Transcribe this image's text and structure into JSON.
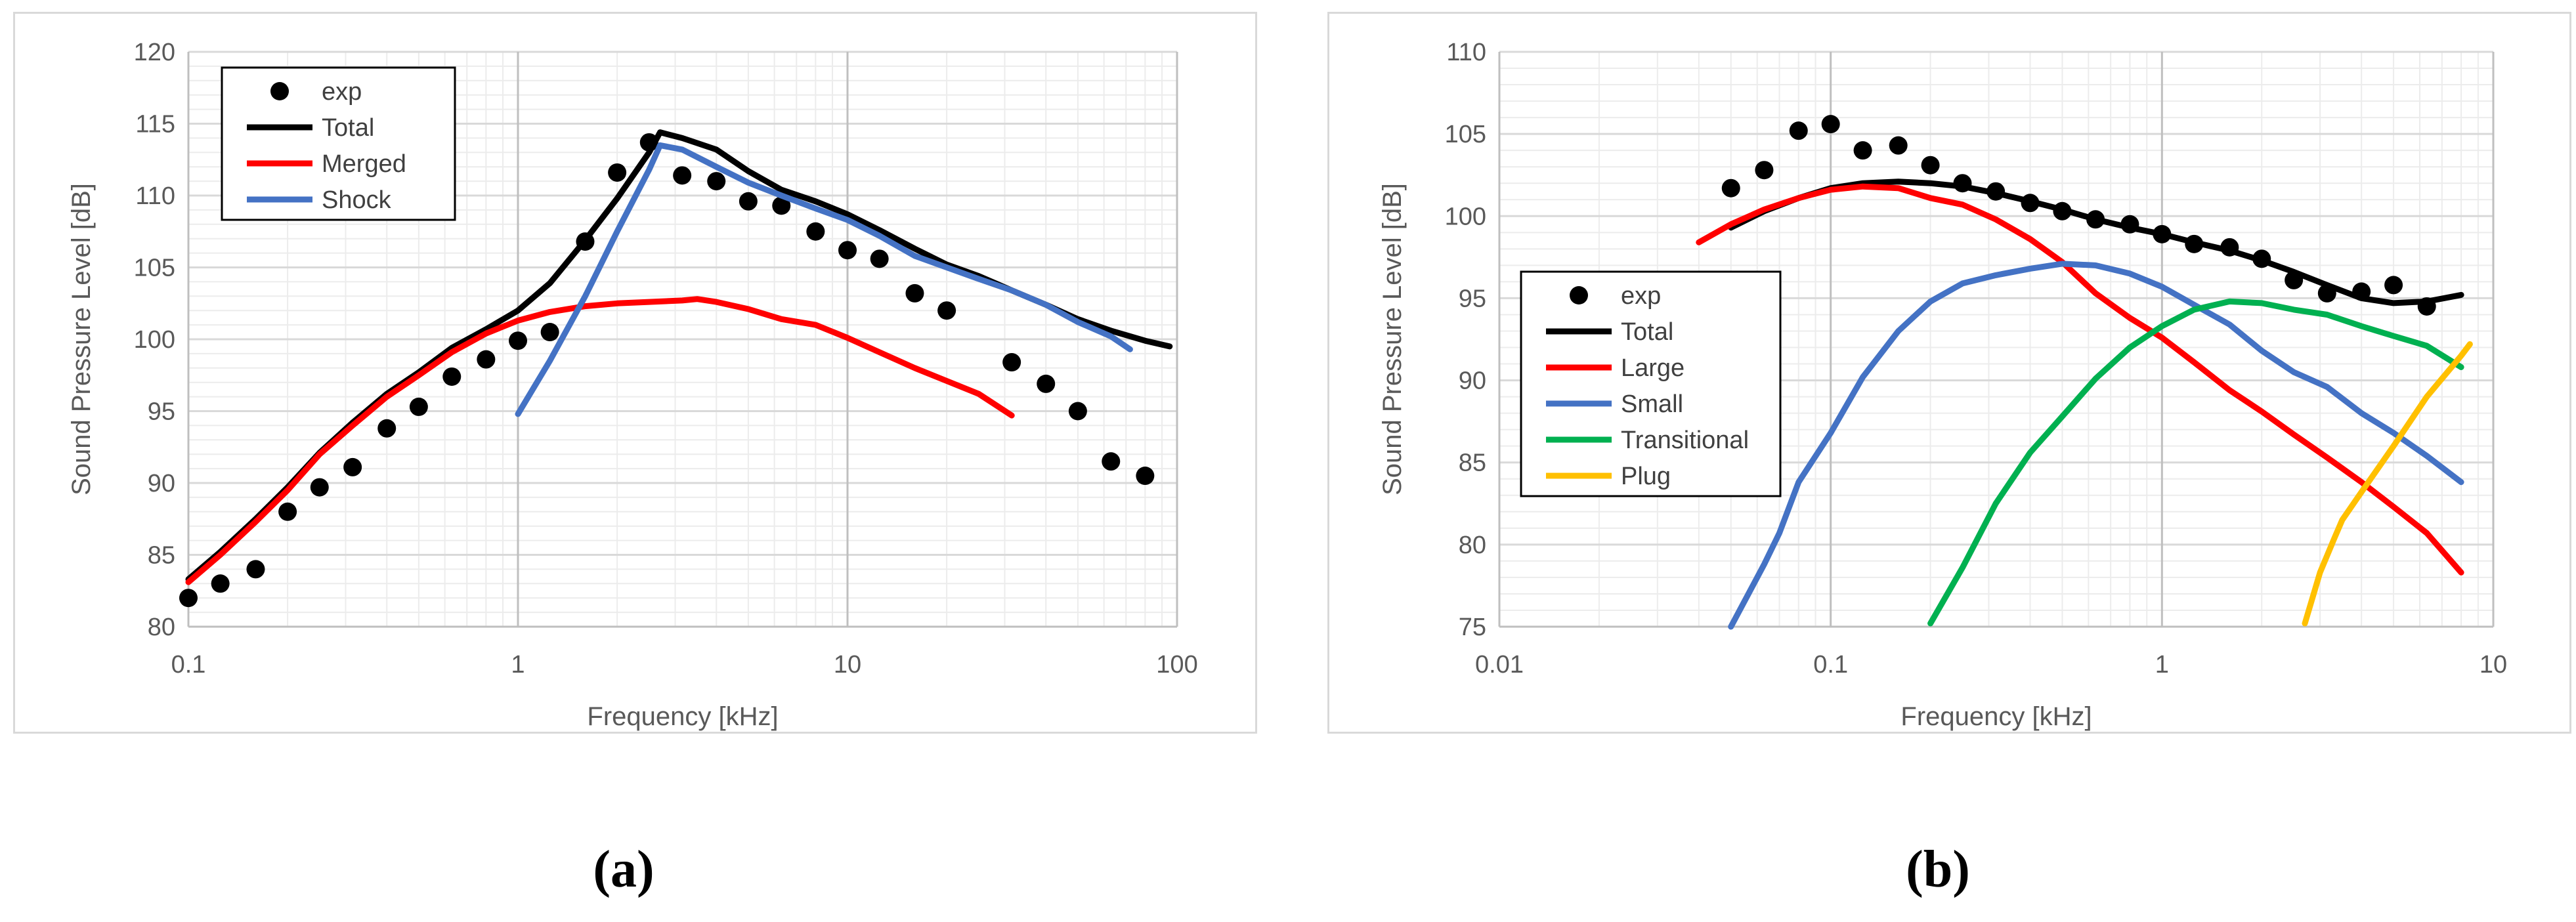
{
  "captions": {
    "a": "(a)",
    "b": "(b)"
  },
  "chart_data": [
    {
      "type": "line",
      "xlabel": "Frequency [kHz]",
      "ylabel": "Sound Pressure Level [dB]",
      "xscale": "log",
      "xlim": [
        0.1,
        100
      ],
      "ylim": [
        80,
        120
      ],
      "xticks": [
        0.1,
        1,
        10,
        100
      ],
      "xtick_labels": [
        "0.1",
        "1",
        "10",
        "100"
      ],
      "yticks": [
        80,
        85,
        90,
        95,
        100,
        105,
        110,
        115,
        120
      ],
      "grid": true,
      "legend": "top-left",
      "series": [
        {
          "name": "exp",
          "kind": "scatter",
          "color": "#000000",
          "x": [
            0.1,
            0.125,
            0.16,
            0.2,
            0.25,
            0.315,
            0.4,
            0.5,
            0.63,
            0.8,
            1.0,
            1.25,
            1.6,
            2.0,
            2.5,
            3.15,
            4.0,
            5.0,
            6.3,
            8.0,
            10,
            12.5,
            16,
            20,
            31.5,
            40,
            50,
            63,
            80
          ],
          "y": [
            82.0,
            83.0,
            84.0,
            88.0,
            89.7,
            91.1,
            93.8,
            95.3,
            97.4,
            98.6,
            99.9,
            100.5,
            106.8,
            111.6,
            113.7,
            111.4,
            111.0,
            109.6,
            109.3,
            107.5,
            106.2,
            105.6,
            103.2,
            102.0,
            98.4,
            96.9,
            95.0,
            91.5,
            90.5
          ]
        },
        {
          "name": "Total",
          "kind": "line",
          "color": "#000000",
          "x": [
            0.1,
            0.125,
            0.16,
            0.2,
            0.25,
            0.315,
            0.4,
            0.5,
            0.63,
            0.8,
            1.0,
            1.25,
            1.6,
            2.0,
            2.5,
            2.7,
            3.15,
            4.0,
            5.0,
            6.3,
            8.0,
            10,
            12.5,
            16,
            20,
            25,
            31.5,
            40,
            50,
            63,
            80,
            95
          ],
          "y": [
            83.3,
            85.2,
            87.5,
            89.7,
            92.1,
            94.2,
            96.2,
            97.7,
            99.4,
            100.7,
            102.0,
            103.9,
            106.9,
            109.8,
            113.0,
            114.4,
            114.0,
            113.2,
            111.7,
            110.4,
            109.6,
            108.7,
            107.6,
            106.3,
            105.2,
            104.4,
            103.4,
            102.4,
            101.4,
            100.6,
            99.9,
            99.5
          ]
        },
        {
          "name": "Merged",
          "kind": "line",
          "color": "#ff0000",
          "x": [
            0.1,
            0.125,
            0.16,
            0.2,
            0.25,
            0.315,
            0.4,
            0.5,
            0.63,
            0.8,
            1.0,
            1.25,
            1.6,
            2.0,
            2.5,
            3.15,
            3.5,
            4.0,
            5.0,
            6.3,
            8.0,
            10,
            12.5,
            16,
            20,
            25,
            31.5
          ],
          "y": [
            83.1,
            85.0,
            87.3,
            89.5,
            92.0,
            94.0,
            96.0,
            97.5,
            99.1,
            100.4,
            101.3,
            101.9,
            102.3,
            102.5,
            102.6,
            102.7,
            102.8,
            102.6,
            102.1,
            101.4,
            101.0,
            100.1,
            99.1,
            98.0,
            97.1,
            96.2,
            94.7
          ]
        },
        {
          "name": "Shock",
          "kind": "line",
          "color": "#4472c4",
          "x": [
            1.0,
            1.25,
            1.6,
            2.0,
            2.5,
            2.7,
            3.15,
            4.0,
            5.0,
            6.3,
            8.0,
            10,
            12.5,
            16,
            20,
            25,
            31.5,
            40,
            50,
            63,
            72
          ],
          "y": [
            94.8,
            98.5,
            103.0,
            107.5,
            111.8,
            113.5,
            113.2,
            112.0,
            110.9,
            110.0,
            109.1,
            108.3,
            107.2,
            105.8,
            105.0,
            104.2,
            103.4,
            102.4,
            101.2,
            100.2,
            99.3
          ]
        }
      ]
    },
    {
      "type": "line",
      "xlabel": "Frequency [kHz]",
      "ylabel": "Sound Pressure Level [dB]",
      "xscale": "log",
      "xlim": [
        0.01,
        10
      ],
      "ylim": [
        75,
        110
      ],
      "xticks": [
        0.01,
        0.1,
        1,
        10
      ],
      "xtick_labels": [
        "0.01",
        "0.1",
        "1",
        "10"
      ],
      "yticks": [
        75,
        80,
        85,
        90,
        95,
        100,
        105,
        110
      ],
      "grid": true,
      "legend": "left",
      "series": [
        {
          "name": "exp",
          "kind": "scatter",
          "color": "#000000",
          "x": [
            0.05,
            0.063,
            0.08,
            0.1,
            0.125,
            0.16,
            0.2,
            0.25,
            0.315,
            0.4,
            0.5,
            0.63,
            0.8,
            1.0,
            1.25,
            1.6,
            2.0,
            2.5,
            3.15,
            4.0,
            5.0,
            6.3
          ],
          "y": [
            101.7,
            102.8,
            105.2,
            105.6,
            104.0,
            104.3,
            103.1,
            102.0,
            101.5,
            100.8,
            100.3,
            99.8,
            99.5,
            98.9,
            98.3,
            98.1,
            97.4,
            96.1,
            95.3,
            95.4,
            95.8,
            94.5
          ]
        },
        {
          "name": "Total",
          "kind": "line",
          "color": "#000000",
          "x": [
            0.05,
            0.063,
            0.08,
            0.1,
            0.125,
            0.16,
            0.2,
            0.25,
            0.315,
            0.4,
            0.5,
            0.63,
            0.8,
            1.0,
            1.25,
            1.6,
            2.0,
            2.5,
            3.15,
            4.0,
            5.0,
            6.3,
            8.0
          ],
          "y": [
            99.3,
            100.3,
            101.1,
            101.7,
            102.0,
            102.1,
            102.0,
            101.8,
            101.4,
            100.9,
            100.4,
            99.8,
            99.3,
            98.9,
            98.4,
            97.9,
            97.3,
            96.6,
            95.8,
            95.0,
            94.7,
            94.8,
            95.2
          ]
        },
        {
          "name": "Large",
          "kind": "line",
          "color": "#ff0000",
          "x": [
            0.04,
            0.05,
            0.063,
            0.08,
            0.1,
            0.125,
            0.16,
            0.2,
            0.25,
            0.315,
            0.4,
            0.5,
            0.63,
            0.8,
            1.0,
            1.25,
            1.6,
            2.0,
            2.5,
            3.15,
            4.0,
            5.0,
            6.3,
            8.0
          ],
          "y": [
            98.4,
            99.5,
            100.4,
            101.1,
            101.6,
            101.8,
            101.7,
            101.1,
            100.7,
            99.8,
            98.6,
            97.2,
            95.3,
            93.8,
            92.6,
            91.1,
            89.4,
            88.1,
            86.7,
            85.3,
            83.8,
            82.3,
            80.7,
            78.3
          ]
        },
        {
          "name": "Small",
          "kind": "line",
          "color": "#4472c4",
          "x": [
            0.05,
            0.063,
            0.07,
            0.08,
            0.1,
            0.125,
            0.16,
            0.2,
            0.25,
            0.315,
            0.4,
            0.5,
            0.63,
            0.8,
            1.0,
            1.25,
            1.6,
            2.0,
            2.5,
            3.15,
            4.0,
            5.0,
            6.3,
            8.0
          ],
          "y": [
            75.0,
            78.8,
            80.7,
            83.8,
            86.8,
            90.2,
            93.0,
            94.8,
            95.9,
            96.4,
            96.8,
            97.1,
            97.0,
            96.5,
            95.7,
            94.6,
            93.4,
            91.8,
            90.5,
            89.6,
            88.0,
            86.8,
            85.4,
            83.8
          ]
        },
        {
          "name": "Transitional",
          "kind": "line",
          "color": "#00b050",
          "x": [
            0.2,
            0.25,
            0.315,
            0.4,
            0.5,
            0.63,
            0.8,
            1.0,
            1.25,
            1.6,
            2.0,
            2.5,
            3.15,
            4.0,
            5.0,
            6.3,
            8.0
          ],
          "y": [
            75.2,
            78.6,
            82.5,
            85.6,
            87.8,
            90.1,
            92.0,
            93.3,
            94.3,
            94.8,
            94.7,
            94.3,
            94.0,
            93.3,
            92.7,
            92.1,
            90.8
          ]
        },
        {
          "name": "Plug",
          "kind": "line",
          "color": "#ffc000",
          "x": [
            2.7,
            3.0,
            3.3,
            3.5,
            4.0,
            5.0,
            6.3,
            8.0,
            8.5
          ],
          "y": [
            75.2,
            78.3,
            80.3,
            81.5,
            83.2,
            86.0,
            89.0,
            91.5,
            92.2
          ]
        }
      ]
    }
  ]
}
